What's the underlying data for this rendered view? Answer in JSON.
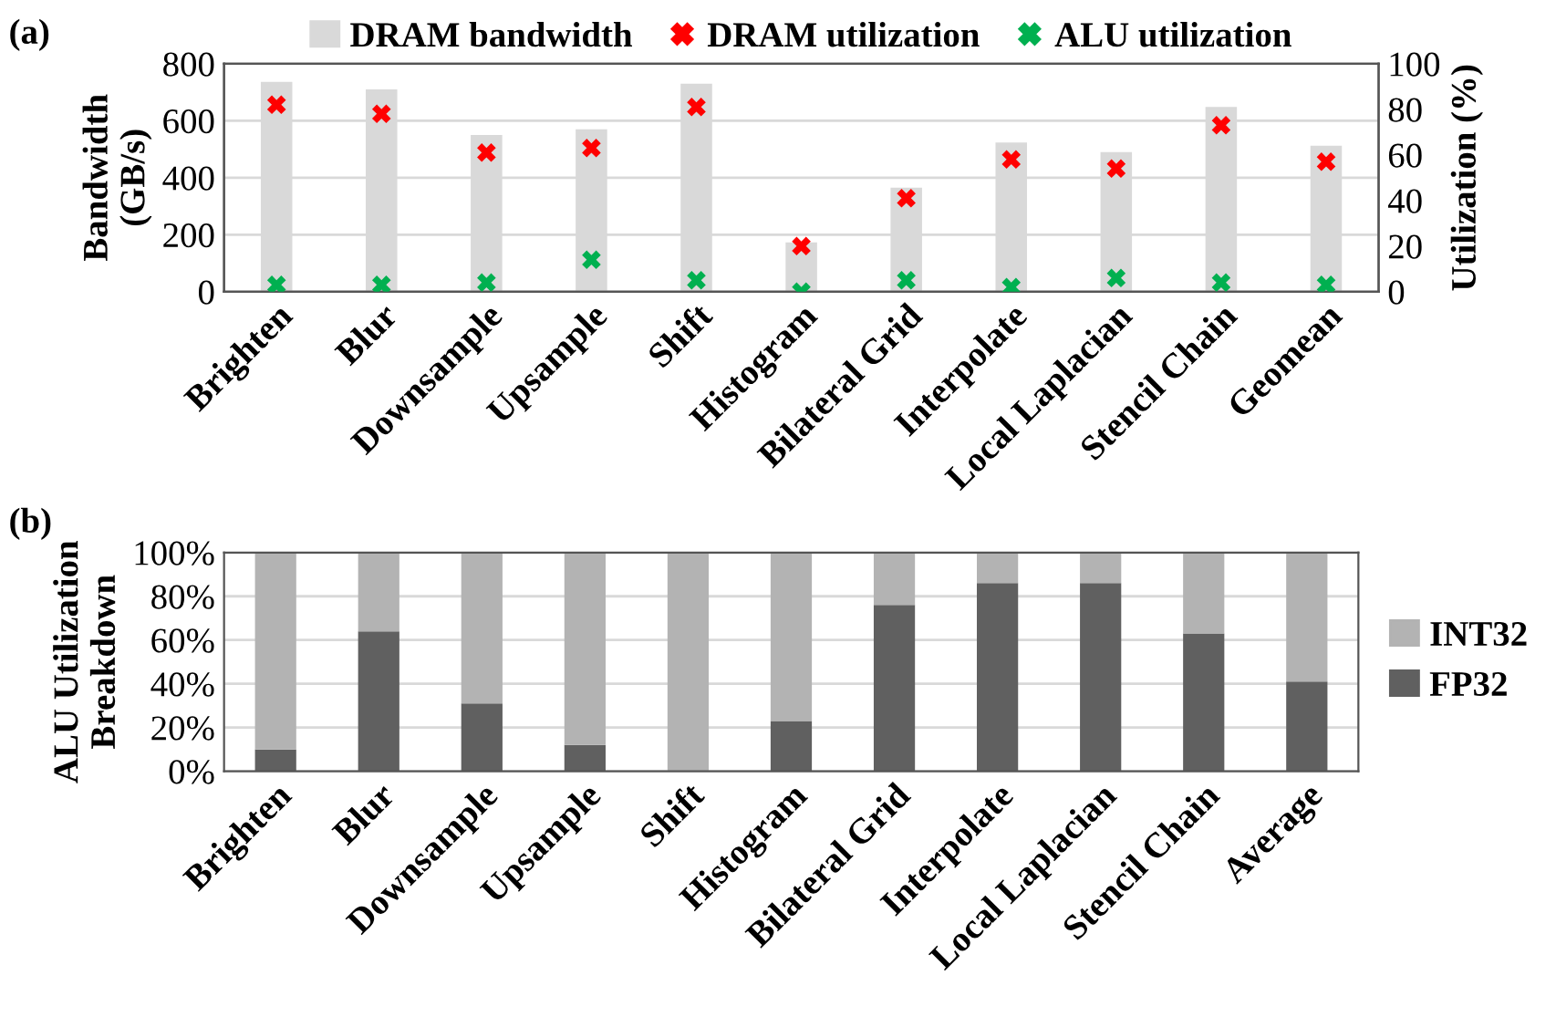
{
  "chart_data": [
    {
      "type": "bar",
      "title": "(a)",
      "ylabel": "Bandwidth\n(GB/s)",
      "y2label": "Utilization (%)",
      "categories": [
        "Brighten",
        "Blur",
        "Downsample",
        "Upsample",
        "Shift",
        "Histogram",
        "Bilateral Grid",
        "Interpolate",
        "Local Laplacian",
        "Stencil Chain",
        "Geomean"
      ],
      "series": [
        {
          "name": "DRAM bandwidth",
          "color": "#d9d9d9",
          "values": [
            736,
            710,
            550,
            570,
            730,
            173,
            365,
            523,
            490,
            648,
            512
          ]
        },
        {
          "name": "DRAM utilization",
          "type": "scatter",
          "axis": "y2",
          "marker": "cross",
          "color": "#ff0000",
          "values": [
            82,
            78,
            61,
            63,
            81,
            20,
            41,
            58,
            54,
            73,
            57
          ]
        },
        {
          "name": "ALU utilization",
          "type": "scatter",
          "axis": "y2",
          "marker": "cross",
          "color": "#00b050",
          "values": [
            3,
            3,
            4,
            14,
            5,
            0,
            5,
            2,
            6,
            4,
            3
          ]
        }
      ],
      "ylim": [
        0,
        800
      ],
      "yticks": [
        0,
        200,
        400,
        600,
        800
      ],
      "y2lim": [
        0,
        100
      ],
      "y2ticks": [
        0,
        20,
        40,
        60,
        80,
        100
      ],
      "grid": "y",
      "legend": "top"
    },
    {
      "type": "bar",
      "title": "(b)",
      "ylabel": "ALU Utilization\nBreakdown",
      "stacked": true,
      "categories": [
        "Brighten",
        "Blur",
        "Downsample",
        "Upsample",
        "Shift",
        "Histogram",
        "Bilateral Grid",
        "Interpolate",
        "Local Laplacian",
        "Stencil Chain",
        "Average"
      ],
      "series": [
        {
          "name": "FP32",
          "color": "#606060",
          "values": [
            10,
            64,
            31,
            12,
            0,
            23,
            76,
            86,
            86,
            63,
            41
          ]
        },
        {
          "name": "INT32",
          "color": "#b3b3b3",
          "values": [
            90,
            36,
            69,
            88,
            100,
            77,
            24,
            14,
            14,
            37,
            59
          ]
        }
      ],
      "ylim": [
        0,
        100
      ],
      "yticks": [
        {
          "value": 0,
          "label": "0%"
        },
        {
          "value": 20,
          "label": "20%"
        },
        {
          "value": 40,
          "label": "40%"
        },
        {
          "value": 60,
          "label": "60%"
        },
        {
          "value": 80,
          "label": "80%"
        },
        {
          "value": 100,
          "label": "100%"
        }
      ],
      "grid": "y",
      "legend": "right"
    }
  ]
}
